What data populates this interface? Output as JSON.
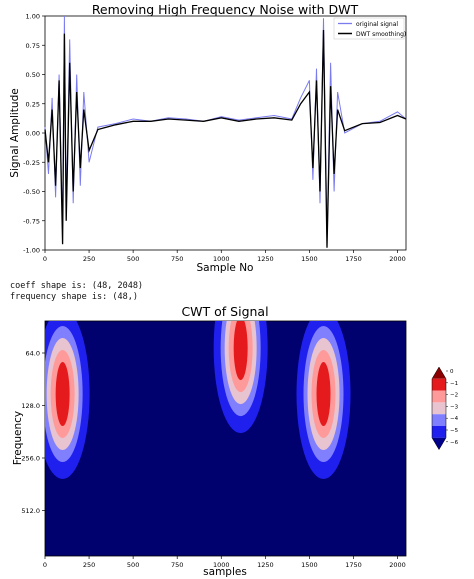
{
  "chart_data": [
    {
      "type": "line",
      "title": "Removing High Frequency Noise with DWT",
      "xlabel": "Sample No",
      "ylabel": "Signal Amplitude",
      "xlim": [
        0,
        2048
      ],
      "ylim": [
        -1.0,
        1.0
      ],
      "xticks": [
        "0",
        "250",
        "500",
        "750",
        "1000",
        "1250",
        "1500",
        "1750",
        "2000"
      ],
      "yticks": [
        "1.00",
        "0.75",
        "0.50",
        "0.25",
        "0.00",
        "-0.25",
        "-0.50",
        "-0.75",
        "-1.00"
      ],
      "grid": false,
      "legend": "top-right",
      "series": [
        {
          "name": "original signal",
          "color": "#7b7bf0",
          "x": [
            0,
            20,
            40,
            60,
            80,
            100,
            110,
            120,
            140,
            160,
            180,
            200,
            220,
            250,
            300,
            400,
            500,
            600,
            700,
            800,
            900,
            1000,
            1100,
            1200,
            1300,
            1400,
            1450,
            1500,
            1520,
            1540,
            1560,
            1580,
            1600,
            1620,
            1640,
            1660,
            1700,
            1800,
            1900,
            2000,
            2048
          ],
          "values": [
            0.05,
            -0.35,
            0.3,
            -0.55,
            0.5,
            -0.8,
            1.0,
            -0.7,
            0.8,
            -0.6,
            0.5,
            -0.45,
            0.35,
            -0.25,
            0.05,
            0.08,
            0.12,
            0.1,
            0.13,
            0.12,
            0.1,
            0.14,
            0.11,
            0.13,
            0.15,
            0.12,
            0.3,
            0.45,
            -0.4,
            0.55,
            -0.6,
            0.98,
            -0.9,
            0.6,
            -0.5,
            0.35,
            0.0,
            0.08,
            0.1,
            0.18,
            0.12
          ]
        },
        {
          "name": "DWT smoothing)",
          "color": "#000000",
          "x": [
            0,
            20,
            40,
            60,
            80,
            100,
            110,
            120,
            140,
            160,
            180,
            200,
            220,
            250,
            300,
            400,
            500,
            600,
            700,
            800,
            900,
            1000,
            1100,
            1200,
            1300,
            1400,
            1450,
            1500,
            1520,
            1540,
            1560,
            1580,
            1600,
            1620,
            1640,
            1660,
            1700,
            1800,
            1900,
            2000,
            2048
          ],
          "values": [
            0.03,
            -0.25,
            0.2,
            -0.45,
            0.45,
            -0.95,
            0.85,
            -0.75,
            0.6,
            -0.5,
            0.35,
            -0.3,
            0.2,
            -0.15,
            0.03,
            0.07,
            0.1,
            0.1,
            0.12,
            0.11,
            0.1,
            0.13,
            0.1,
            0.12,
            0.13,
            0.11,
            0.25,
            0.35,
            -0.3,
            0.45,
            -0.5,
            0.88,
            -0.98,
            0.4,
            -0.35,
            0.2,
            0.02,
            0.08,
            0.09,
            0.15,
            0.12
          ]
        }
      ]
    },
    {
      "type": "heatmap",
      "title": "CWT of Signal",
      "xlabel": "samples",
      "ylabel": "Frequency",
      "xlim": [
        0,
        2048
      ],
      "xticks": [
        "0",
        "250",
        "500",
        "750",
        "1000",
        "1250",
        "1500",
        "1750",
        "2000"
      ],
      "yticks": [
        "64.0",
        "128.0",
        "256.0",
        "512.0"
      ],
      "colorbar": {
        "ticks": [
          "0",
          "−1",
          "−2",
          "−3",
          "−4",
          "−5",
          "−6"
        ],
        "levels": [
          0,
          -1,
          -2,
          -3,
          -4,
          -5,
          -6
        ],
        "colors": [
          "#8b0000",
          "#e41a1c",
          "#ff9a9a",
          "#e8c4d0",
          "#8080ff",
          "#2020ee",
          "#00008b"
        ]
      },
      "background_color": "#00006e",
      "blobs": [
        {
          "x": 100,
          "scale": 110,
          "level": -2
        },
        {
          "x": 1580,
          "scale": 110,
          "level": -2
        },
        {
          "x": 1110,
          "scale": 60,
          "level": -4
        }
      ]
    }
  ],
  "console": {
    "line1": "coeff shape is: (48, 2048)",
    "line2": "frequency shape is: (48,)"
  }
}
